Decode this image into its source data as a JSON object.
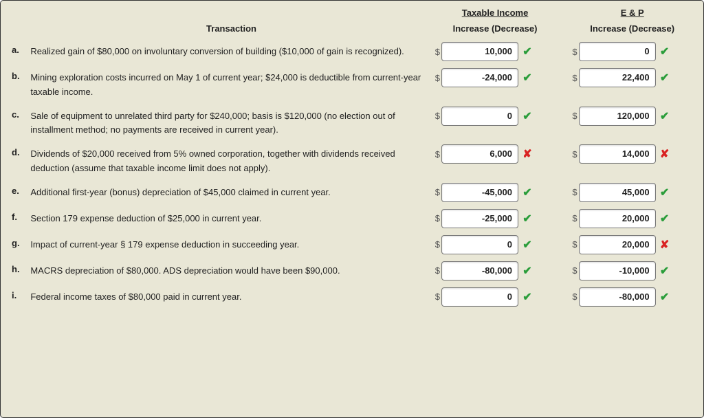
{
  "headers": {
    "transaction": "Transaction",
    "taxable_top": "Taxable Income",
    "ep_top": "E & P",
    "sub": "Increase (Decrease)"
  },
  "marks": {
    "ok": "✔",
    "bad": "✘"
  },
  "rows": [
    {
      "letter": "a.",
      "desc": "Realized gain of $80,000 on involuntary conversion of building ($10,000 of gain is recognized).",
      "ti": {
        "value": "10,000",
        "status": "ok"
      },
      "ep": {
        "value": "0",
        "status": "ok"
      }
    },
    {
      "letter": "b.",
      "desc": "Mining exploration costs incurred on May 1 of current year; $24,000 is deductible from current-year taxable income.",
      "ti": {
        "value": "-24,000",
        "status": "ok"
      },
      "ep": {
        "value": "22,400",
        "status": "ok"
      }
    },
    {
      "letter": "c.",
      "desc": "Sale of equipment to unrelated third party for $240,000; basis is $120,000 (no election out of installment method; no payments are received in current year).",
      "ti": {
        "value": "0",
        "status": "ok"
      },
      "ep": {
        "value": "120,000",
        "status": "ok"
      }
    },
    {
      "letter": "d.",
      "desc": "Dividends of $20,000 received from 5% owned corporation, together with dividends received deduction (assume that taxable income limit does not apply).",
      "ti": {
        "value": "6,000",
        "status": "bad"
      },
      "ep": {
        "value": "14,000",
        "status": "bad"
      }
    },
    {
      "letter": "e.",
      "desc": "Additional first-year (bonus) depreciation of $45,000 claimed in current year.",
      "ti": {
        "value": "-45,000",
        "status": "ok"
      },
      "ep": {
        "value": "45,000",
        "status": "ok"
      }
    },
    {
      "letter": "f.",
      "desc": "Section 179 expense deduction of $25,000 in current year.",
      "ti": {
        "value": "-25,000",
        "status": "ok"
      },
      "ep": {
        "value": "20,000",
        "status": "ok"
      }
    },
    {
      "letter": "g.",
      "desc": "Impact of current-year § 179 expense deduction in succeeding year.",
      "ti": {
        "value": "0",
        "status": "ok"
      },
      "ep": {
        "value": "20,000",
        "status": "bad"
      }
    },
    {
      "letter": "h.",
      "desc": "MACRS depreciation of $80,000. ADS depreciation would have been $90,000.",
      "ti": {
        "value": "-80,000",
        "status": "ok"
      },
      "ep": {
        "value": "-10,000",
        "status": "ok"
      }
    },
    {
      "letter": "i.",
      "desc": "Federal income taxes of $80,000 paid in current year.",
      "ti": {
        "value": "0",
        "status": "ok"
      },
      "ep": {
        "value": "-80,000",
        "status": "ok"
      }
    }
  ]
}
